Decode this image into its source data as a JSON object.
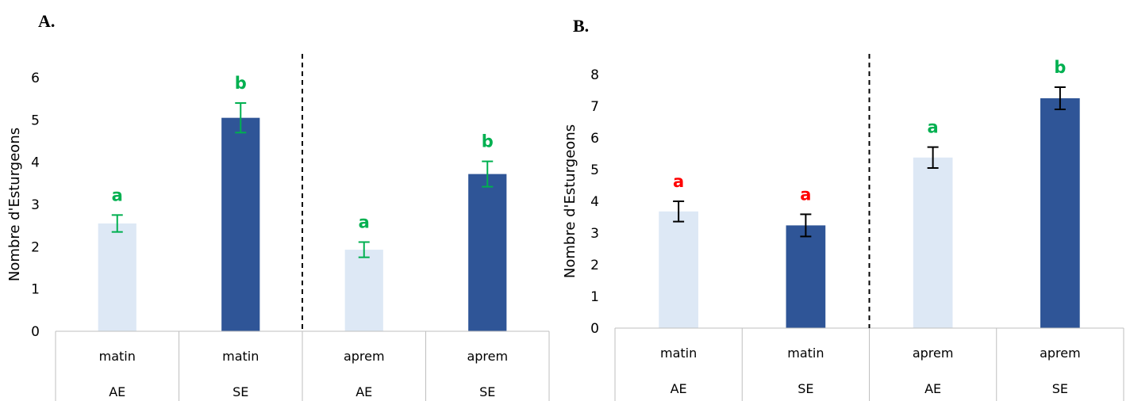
{
  "colors": {
    "AE": "#dde8f5",
    "SE": "#2f5597"
  },
  "chart_data": [
    {
      "type": "bar",
      "panel_label": "A.",
      "ylabel": "Nombre d'Esturgeons",
      "ylim": [
        0,
        6
      ],
      "yticks": [
        0,
        1,
        2,
        3,
        4,
        5,
        6
      ],
      "categories": [
        {
          "top": "matin",
          "bottom": "AE"
        },
        {
          "top": "matin",
          "bottom": "SE"
        },
        {
          "top": "aprem",
          "bottom": "AE"
        },
        {
          "top": "aprem",
          "bottom": "SE"
        }
      ],
      "values": [
        2.55,
        5.05,
        1.93,
        3.72
      ],
      "errors": [
        0.2,
        0.35,
        0.18,
        0.3
      ],
      "bar_colors": [
        "AE",
        "SE",
        "AE",
        "SE"
      ],
      "significance": [
        "a",
        "b",
        "a",
        "b"
      ],
      "significance_colors": [
        "#00b050",
        "#00b050",
        "#00b050",
        "#00b050"
      ],
      "errorbar_color": "#00b050",
      "divider_after_index": 1
    },
    {
      "type": "bar",
      "panel_label": "B.",
      "ylabel": "Nombre d'Esturgeons",
      "ylim": [
        0,
        8
      ],
      "yticks": [
        0,
        1,
        2,
        3,
        4,
        5,
        6,
        7,
        8
      ],
      "categories": [
        {
          "top": "matin",
          "bottom": "AE"
        },
        {
          "top": "matin",
          "bottom": "SE"
        },
        {
          "top": "aprem",
          "bottom": "AE"
        },
        {
          "top": "aprem",
          "bottom": "SE"
        }
      ],
      "values": [
        3.68,
        3.24,
        5.38,
        7.25
      ],
      "errors": [
        0.32,
        0.35,
        0.33,
        0.35
      ],
      "bar_colors": [
        "AE",
        "SE",
        "AE",
        "SE"
      ],
      "significance": [
        "a",
        "a",
        "a",
        "b"
      ],
      "significance_colors": [
        "#ff0000",
        "#ff0000",
        "#00b050",
        "#00b050"
      ],
      "errorbar_color": "#000000",
      "divider_after_index": 1
    }
  ]
}
